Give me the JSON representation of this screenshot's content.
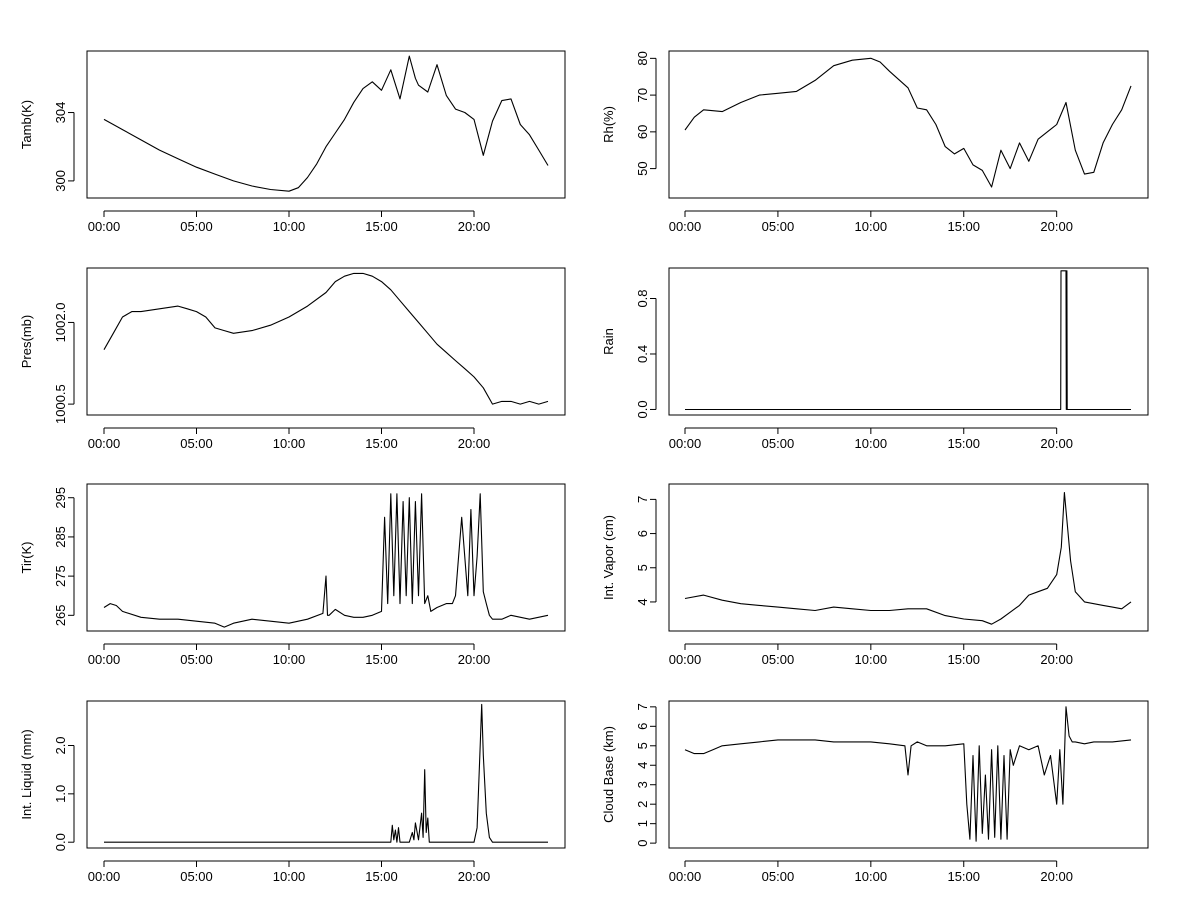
{
  "chart_data": [
    {
      "type": "line",
      "ylabel": "Tamb(K)",
      "x_ticks": [
        "00:00",
        "05:00",
        "10:00",
        "15:00",
        "20:00"
      ],
      "y_ticks": [
        300,
        304
      ],
      "ylim": [
        299,
        307.6
      ],
      "x": [
        "00:00",
        "01:00",
        "02:00",
        "03:00",
        "04:00",
        "05:00",
        "06:00",
        "07:00",
        "08:00",
        "09:00",
        "10:00",
        "10:30",
        "11:00",
        "11:30",
        "12:00",
        "12:30",
        "13:00",
        "13:30",
        "14:00",
        "14:30",
        "15:00",
        "15:30",
        "16:00",
        "16:30",
        "16:50",
        "17:00",
        "17:30",
        "18:00",
        "18:30",
        "19:00",
        "19:30",
        "20:00",
        "20:30",
        "21:00",
        "21:30",
        "22:00",
        "22:30",
        "23:00",
        "23:30",
        "24:00"
      ],
      "values": [
        303.6,
        303.0,
        302.4,
        301.8,
        301.3,
        300.8,
        300.4,
        300.0,
        299.7,
        299.5,
        299.4,
        299.6,
        300.2,
        301.0,
        302.0,
        302.8,
        303.6,
        304.6,
        305.4,
        305.8,
        305.3,
        306.5,
        304.8,
        307.3,
        306.0,
        305.6,
        305.2,
        306.8,
        305.0,
        304.2,
        304.0,
        303.6,
        301.5,
        303.5,
        304.7,
        304.8,
        303.3,
        302.7,
        301.8,
        300.9
      ]
    },
    {
      "type": "line",
      "ylabel": "Rh(%)",
      "x_ticks": [
        "00:00",
        "05:00",
        "10:00",
        "15:00",
        "20:00"
      ],
      "y_ticks": [
        50,
        60,
        70,
        80
      ],
      "ylim": [
        42,
        82
      ],
      "x": [
        "00:00",
        "00:30",
        "01:00",
        "02:00",
        "03:00",
        "04:00",
        "05:00",
        "06:00",
        "07:00",
        "08:00",
        "09:00",
        "10:00",
        "10:30",
        "11:00",
        "12:00",
        "12:30",
        "13:00",
        "13:30",
        "14:00",
        "14:30",
        "15:00",
        "15:30",
        "16:00",
        "16:30",
        "17:00",
        "17:30",
        "18:00",
        "18:30",
        "19:00",
        "19:30",
        "20:00",
        "20:30",
        "21:00",
        "21:30",
        "22:00",
        "22:30",
        "23:00",
        "23:30",
        "24:00"
      ],
      "values": [
        60.5,
        64.0,
        66.0,
        65.5,
        68.0,
        70.0,
        70.5,
        71.0,
        74.0,
        78.0,
        79.5,
        80.0,
        79.0,
        76.5,
        72.0,
        66.5,
        66.0,
        62.0,
        56.0,
        54.0,
        55.5,
        51.0,
        49.5,
        45.0,
        55.0,
        50.0,
        57.0,
        52.0,
        58.0,
        60.0,
        62.0,
        68.0,
        55.0,
        48.5,
        49.0,
        57.0,
        62.0,
        66.0,
        72.5
      ]
    },
    {
      "type": "line",
      "ylabel": "Pres(mb)",
      "x_ticks": [
        "00:00",
        "05:00",
        "10:00",
        "15:00",
        "20:00"
      ],
      "y_ticks": [
        1000.5,
        1002.0
      ],
      "y_tick_labels": [
        "1000.5",
        "1002.0"
      ],
      "ylim": [
        1000.3,
        1003.0
      ],
      "x": [
        "00:00",
        "00:30",
        "01:00",
        "01:30",
        "02:00",
        "03:00",
        "04:00",
        "04:30",
        "05:00",
        "05:30",
        "06:00",
        "06:30",
        "07:00",
        "08:00",
        "09:00",
        "10:00",
        "11:00",
        "12:00",
        "12:30",
        "13:00",
        "13:30",
        "14:00",
        "14:30",
        "15:00",
        "15:30",
        "16:00",
        "16:30",
        "17:00",
        "17:30",
        "18:00",
        "18:30",
        "19:00",
        "19:30",
        "20:00",
        "20:30",
        "21:00",
        "21:30",
        "22:00",
        "22:30",
        "23:00",
        "23:30",
        "24:00"
      ],
      "values": [
        1001.5,
        1001.8,
        1002.1,
        1002.2,
        1002.2,
        1002.25,
        1002.3,
        1002.25,
        1002.2,
        1002.1,
        1001.9,
        1001.85,
        1001.8,
        1001.85,
        1001.95,
        1002.1,
        1002.3,
        1002.55,
        1002.75,
        1002.85,
        1002.9,
        1002.9,
        1002.85,
        1002.75,
        1002.6,
        1002.4,
        1002.2,
        1002.0,
        1001.8,
        1001.6,
        1001.45,
        1001.3,
        1001.15,
        1001.0,
        1000.8,
        1000.5,
        1000.55,
        1000.55,
        1000.5,
        1000.55,
        1000.5,
        1000.55
      ]
    },
    {
      "type": "line",
      "ylabel": "Rain",
      "x_ticks": [
        "00:00",
        "05:00",
        "10:00",
        "15:00",
        "20:00"
      ],
      "y_ticks": [
        0.0,
        0.4,
        0.8
      ],
      "y_tick_labels": [
        "0.0",
        "0.4",
        "0.8"
      ],
      "ylim": [
        -0.04,
        1.02
      ],
      "x": [
        "00:00",
        "20:13",
        "20:14",
        "20:30",
        "20:31",
        "20:33",
        "20:34",
        "24:00"
      ],
      "values": [
        0,
        0,
        1,
        1,
        0,
        1,
        0,
        0
      ]
    },
    {
      "type": "line",
      "ylabel": "Tir(K)",
      "x_ticks": [
        "00:00",
        "05:00",
        "10:00",
        "15:00",
        "20:00"
      ],
      "y_ticks": [
        265,
        275,
        285,
        295
      ],
      "ylim": [
        261,
        298.5
      ],
      "x": [
        "00:00",
        "00:20",
        "00:40",
        "01:00",
        "02:00",
        "03:00",
        "04:00",
        "05:00",
        "06:00",
        "06:30",
        "07:00",
        "08:00",
        "09:00",
        "10:00",
        "11:00",
        "11:50",
        "12:00",
        "12:05",
        "12:10",
        "12:30",
        "13:00",
        "13:30",
        "14:00",
        "14:30",
        "15:00",
        "15:10",
        "15:20",
        "15:30",
        "15:40",
        "15:50",
        "16:00",
        "16:10",
        "16:20",
        "16:30",
        "16:40",
        "16:50",
        "17:00",
        "17:10",
        "17:20",
        "17:30",
        "17:40",
        "18:00",
        "18:30",
        "18:50",
        "19:00",
        "19:20",
        "19:40",
        "19:50",
        "20:00",
        "20:10",
        "20:20",
        "20:30",
        "20:40",
        "20:50",
        "21:00",
        "21:30",
        "22:00",
        "23:00",
        "24:00"
      ],
      "values": [
        267,
        268,
        267.5,
        266,
        264.5,
        264,
        264,
        263.5,
        263,
        262,
        263,
        264,
        263.5,
        263,
        264,
        265.5,
        275,
        265,
        265,
        266.5,
        265,
        264.5,
        264.5,
        265,
        266,
        290,
        268,
        296,
        270,
        296,
        268,
        294,
        270,
        295,
        268,
        294,
        270,
        296,
        268,
        270,
        266,
        267,
        268,
        268,
        270,
        290,
        270,
        292,
        270,
        280,
        296,
        271,
        268,
        265,
        264,
        264,
        265,
        264,
        265
      ]
    },
    {
      "type": "line",
      "ylabel": "Int. Vapor (cm)",
      "x_ticks": [
        "00:00",
        "05:00",
        "10:00",
        "15:00",
        "20:00"
      ],
      "y_ticks": [
        4,
        5,
        6,
        7
      ],
      "ylim": [
        3.15,
        7.45
      ],
      "x": [
        "00:00",
        "01:00",
        "02:00",
        "03:00",
        "04:00",
        "05:00",
        "06:00",
        "07:00",
        "08:00",
        "09:00",
        "10:00",
        "11:00",
        "12:00",
        "13:00",
        "14:00",
        "15:00",
        "16:00",
        "16:30",
        "17:00",
        "17:30",
        "18:00",
        "18:30",
        "19:00",
        "19:30",
        "20:00",
        "20:15",
        "20:25",
        "20:35",
        "20:45",
        "21:00",
        "21:30",
        "22:00",
        "22:30",
        "23:00",
        "23:30",
        "24:00"
      ],
      "values": [
        4.1,
        4.2,
        4.05,
        3.95,
        3.9,
        3.85,
        3.8,
        3.75,
        3.85,
        3.8,
        3.75,
        3.75,
        3.8,
        3.8,
        3.6,
        3.5,
        3.45,
        3.35,
        3.5,
        3.7,
        3.9,
        4.2,
        4.3,
        4.4,
        4.8,
        5.6,
        7.2,
        6.2,
        5.2,
        4.3,
        4.0,
        3.95,
        3.9,
        3.85,
        3.8,
        4.0
      ]
    },
    {
      "type": "line",
      "ylabel": "Int. Liquid (mm)",
      "x_ticks": [
        "00:00",
        "05:00",
        "10:00",
        "15:00",
        "20:00"
      ],
      "y_ticks": [
        0.0,
        1.0,
        2.0
      ],
      "y_tick_labels": [
        "0.0",
        "1.0",
        "2.0"
      ],
      "ylim": [
        -0.12,
        2.92
      ],
      "x": [
        "00:00",
        "15:30",
        "15:35",
        "15:40",
        "15:45",
        "15:50",
        "15:55",
        "16:00",
        "16:30",
        "16:40",
        "16:45",
        "16:50",
        "17:00",
        "17:10",
        "17:15",
        "17:20",
        "17:25",
        "17:30",
        "17:35",
        "17:40",
        "18:00",
        "19:00",
        "20:00",
        "20:10",
        "20:20",
        "20:25",
        "20:30",
        "20:35",
        "20:40",
        "20:50",
        "21:00",
        "22:00",
        "24:00"
      ],
      "values": [
        0,
        0,
        0.35,
        0.05,
        0.25,
        0,
        0.3,
        0,
        0,
        0.2,
        0.05,
        0.4,
        0.05,
        0.6,
        0.1,
        1.5,
        0.2,
        0.5,
        0,
        0,
        0,
        0,
        0,
        0.3,
        2.0,
        2.85,
        1.8,
        1.2,
        0.6,
        0.1,
        0,
        0,
        0
      ]
    },
    {
      "type": "line",
      "ylabel": "Cloud Base (km)",
      "x_ticks": [
        "00:00",
        "05:00",
        "10:00",
        "15:00",
        "20:00"
      ],
      "y_ticks": [
        0,
        1,
        2,
        3,
        4,
        5,
        6,
        7
      ],
      "ylim": [
        -0.25,
        7.3
      ],
      "x": [
        "00:00",
        "00:30",
        "01:00",
        "01:30",
        "02:00",
        "03:00",
        "04:00",
        "05:00",
        "06:00",
        "07:00",
        "08:00",
        "09:00",
        "10:00",
        "11:00",
        "11:50",
        "12:00",
        "12:10",
        "12:30",
        "13:00",
        "14:00",
        "15:00",
        "15:10",
        "15:20",
        "15:30",
        "15:40",
        "15:50",
        "16:00",
        "16:10",
        "16:20",
        "16:30",
        "16:40",
        "16:50",
        "17:00",
        "17:10",
        "17:20",
        "17:30",
        "17:40",
        "18:00",
        "18:30",
        "19:00",
        "19:20",
        "19:40",
        "20:00",
        "20:10",
        "20:20",
        "20:30",
        "20:40",
        "20:50",
        "21:00",
        "21:30",
        "22:00",
        "23:00",
        "24:00"
      ],
      "values": [
        4.8,
        4.6,
        4.6,
        4.8,
        5.0,
        5.1,
        5.2,
        5.3,
        5.3,
        5.3,
        5.2,
        5.2,
        5.2,
        5.1,
        5.0,
        3.5,
        5.0,
        5.2,
        5.0,
        5.0,
        5.1,
        2.0,
        0.2,
        4.5,
        0.1,
        5.0,
        0.5,
        3.5,
        0.2,
        4.8,
        0.3,
        5.0,
        0.2,
        4.5,
        0.2,
        4.8,
        4.0,
        5.0,
        4.8,
        5.0,
        3.5,
        4.5,
        2.0,
        4.8,
        2.0,
        7.0,
        5.5,
        5.2,
        5.2,
        5.1,
        5.2,
        5.2,
        5.3
      ]
    }
  ]
}
